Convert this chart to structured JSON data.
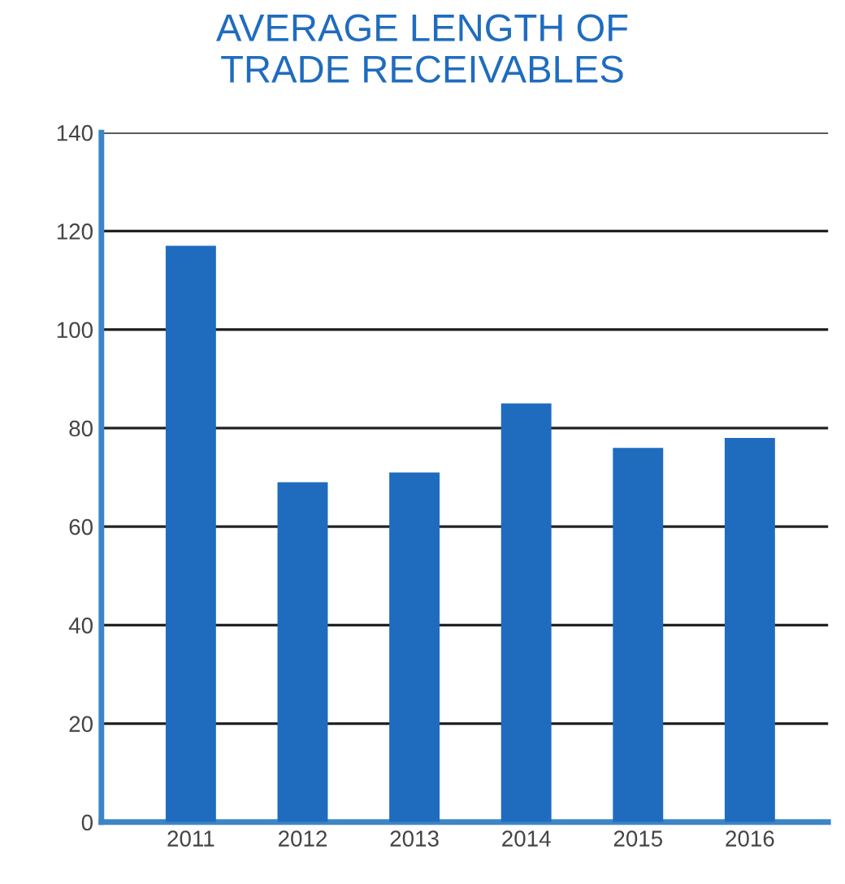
{
  "chart_data": {
    "type": "bar",
    "title": "AVERAGE LENGTH OF\nTRADE RECEIVABLES",
    "categories": [
      "2011",
      "2012",
      "2013",
      "2014",
      "2015",
      "2016"
    ],
    "values": [
      117,
      69,
      71,
      85,
      76,
      78
    ],
    "color": "#1f6cbf",
    "ylim": [
      0,
      140
    ],
    "yticks": [
      0,
      20,
      40,
      60,
      80,
      100,
      120,
      140
    ],
    "grid": "y"
  }
}
